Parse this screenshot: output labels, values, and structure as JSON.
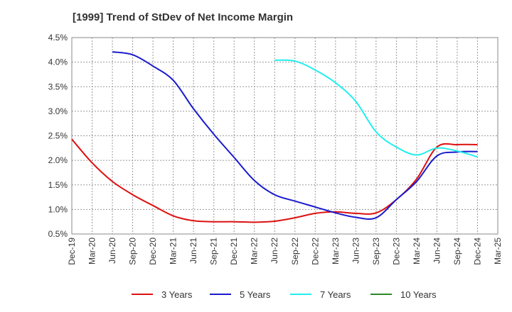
{
  "chart_data": {
    "type": "line",
    "title": "[1999]  Trend of StDev of Net Income Margin",
    "xlabel": "",
    "ylabel": "",
    "x_ticks": [
      "Dec-19",
      "Mar-20",
      "Jun-20",
      "Sep-20",
      "Dec-20",
      "Mar-21",
      "Jun-21",
      "Sep-21",
      "Dec-21",
      "Mar-22",
      "Jun-22",
      "Sep-22",
      "Dec-22",
      "Mar-23",
      "Jun-23",
      "Sep-23",
      "Dec-23",
      "Mar-24",
      "Jun-24",
      "Sep-24",
      "Dec-24",
      "Mar-25"
    ],
    "y_ticks": [
      "0.5%",
      "1.0%",
      "1.5%",
      "2.0%",
      "2.5%",
      "3.0%",
      "3.5%",
      "4.0%",
      "4.5%"
    ],
    "ylim": [
      0.5,
      4.5
    ],
    "grid": true,
    "legend_position": "bottom",
    "series": [
      {
        "name": "3 Years",
        "color": "#dd1111",
        "values": [
          [
            "Dec-19",
            2.43
          ],
          [
            "Mar-20",
            1.95
          ],
          [
            "Jun-20",
            1.57
          ],
          [
            "Sep-20",
            1.3
          ],
          [
            "Dec-20",
            1.08
          ],
          [
            "Mar-21",
            0.87
          ],
          [
            "Jun-21",
            0.77
          ],
          [
            "Sep-21",
            0.75
          ],
          [
            "Dec-21",
            0.75
          ],
          [
            "Mar-22",
            0.74
          ],
          [
            "Jun-22",
            0.76
          ],
          [
            "Sep-22",
            0.83
          ],
          [
            "Dec-22",
            0.92
          ],
          [
            "Mar-23",
            0.95
          ],
          [
            "Jun-23",
            0.92
          ],
          [
            "Sep-23",
            0.93
          ],
          [
            "Dec-23",
            1.2
          ],
          [
            "Mar-24",
            1.62
          ],
          [
            "Jun-24",
            2.27
          ],
          [
            "Sep-24",
            2.32
          ],
          [
            "Dec-24",
            2.32
          ]
        ]
      },
      {
        "name": "5 Years",
        "color": "#1a1acc",
        "values": [
          [
            "Jun-20",
            4.21
          ],
          [
            "Sep-20",
            4.15
          ],
          [
            "Dec-20",
            3.92
          ],
          [
            "Mar-21",
            3.63
          ],
          [
            "Jun-21",
            3.05
          ],
          [
            "Sep-21",
            2.53
          ],
          [
            "Dec-21",
            2.06
          ],
          [
            "Mar-22",
            1.59
          ],
          [
            "Jun-22",
            1.3
          ],
          [
            "Sep-22",
            1.17
          ],
          [
            "Dec-22",
            1.05
          ],
          [
            "Mar-23",
            0.93
          ],
          [
            "Jun-23",
            0.84
          ],
          [
            "Sep-23",
            0.83
          ],
          [
            "Dec-23",
            1.2
          ],
          [
            "Mar-24",
            1.57
          ],
          [
            "Jun-24",
            2.09
          ],
          [
            "Sep-24",
            2.17
          ],
          [
            "Dec-24",
            2.18
          ]
        ]
      },
      {
        "name": "7 Years",
        "color": "#22eeee",
        "values": [
          [
            "Jun-22",
            4.04
          ],
          [
            "Sep-22",
            4.02
          ],
          [
            "Dec-22",
            3.84
          ],
          [
            "Mar-23",
            3.58
          ],
          [
            "Jun-23",
            3.2
          ],
          [
            "Sep-23",
            2.58
          ],
          [
            "Dec-23",
            2.27
          ],
          [
            "Mar-24",
            2.11
          ],
          [
            "Jun-24",
            2.25
          ],
          [
            "Sep-24",
            2.19
          ],
          [
            "Dec-24",
            2.07
          ]
        ]
      },
      {
        "name": "10 Years",
        "color": "#2a8a2a",
        "values": []
      }
    ]
  }
}
